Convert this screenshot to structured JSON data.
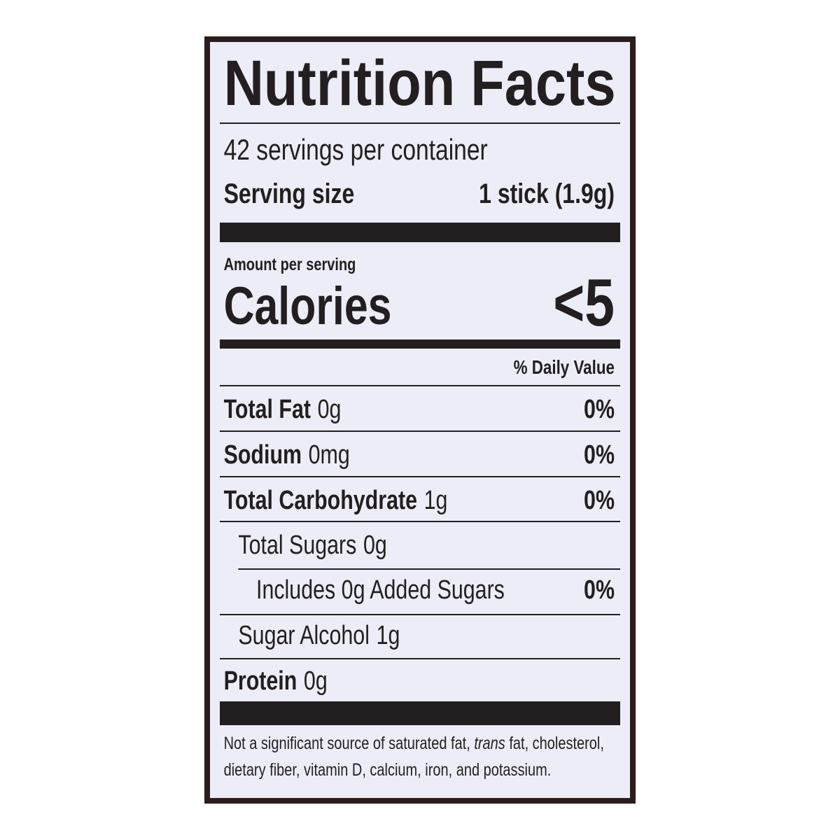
{
  "title": "Nutrition Facts",
  "servings": "42 servings per container",
  "serving_size": {
    "label": "Serving size",
    "value": "1 stick (1.9g)"
  },
  "amount_per_serving": "Amount per serving",
  "calories": {
    "label": "Calories",
    "value": "<5"
  },
  "daily_value_header": "% Daily Value",
  "nutrients": [
    {
      "name": "Total Fat",
      "amount": "0g",
      "dv": "0%"
    },
    {
      "name": "Sodium",
      "amount": "0mg",
      "dv": "0%"
    },
    {
      "name": "Total Carbohydrate",
      "amount": "1g",
      "dv": "0%"
    },
    {
      "name": "Total Sugars",
      "amount": "0g"
    },
    {
      "name": "Includes 0g Added Sugars",
      "dv": "0%"
    },
    {
      "name": "Sugar Alcohol",
      "amount": "1g"
    },
    {
      "name": "Protein",
      "amount": "0g"
    }
  ],
  "footnote": [
    "Not a significant source of saturated fat, ",
    "trans",
    " fat, cholesterol,",
    "dietary fiber, vitamin D, calcium, iron, and potassium."
  ]
}
